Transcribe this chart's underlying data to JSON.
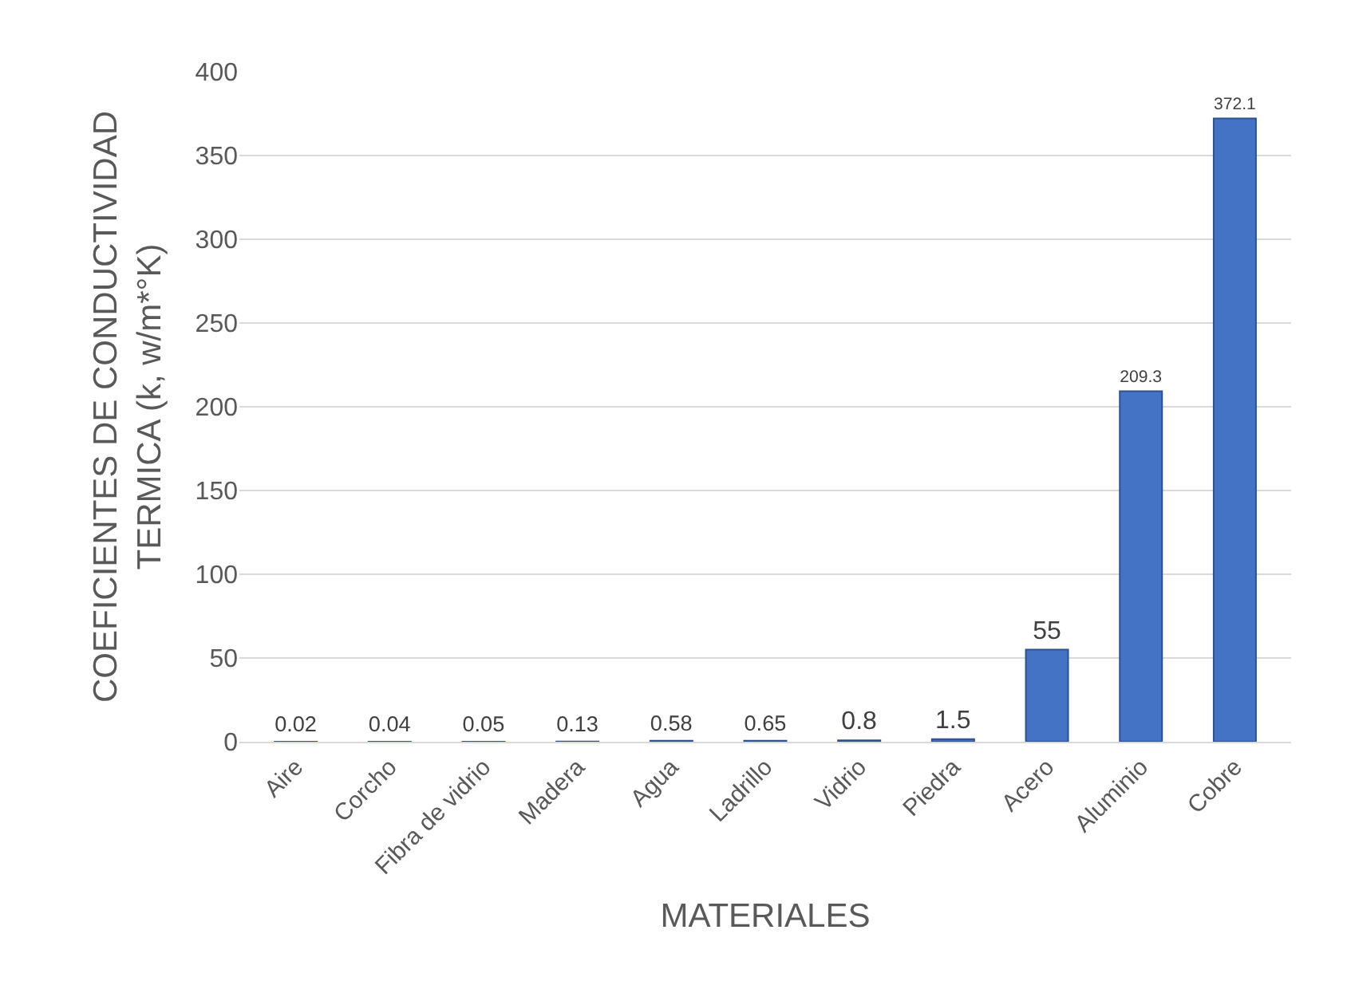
{
  "chart_data": {
    "type": "bar",
    "categories": [
      "Aire",
      "Corcho",
      "Fibra de vidrio",
      "Madera",
      "Agua",
      "Ladrillo",
      "Vidrio",
      "Piedra",
      "Acero",
      "Aluminio",
      "Cobre"
    ],
    "values": [
      0.02,
      0.04,
      0.05,
      0.13,
      0.58,
      0.65,
      0.8,
      1.5,
      55,
      209.3,
      372.1
    ],
    "color": "#4472c4",
    "xlabel": "MATERIALES",
    "ylabel": "COEFICIENTES DE CONDUCTIVIDAD TERMICA (k, w/m*°K)",
    "ylim": [
      0,
      400
    ],
    "yticks": [
      0,
      50,
      100,
      150,
      200,
      250,
      300,
      350,
      400
    ],
    "grid": "y",
    "data_labels": true,
    "legend": false
  }
}
